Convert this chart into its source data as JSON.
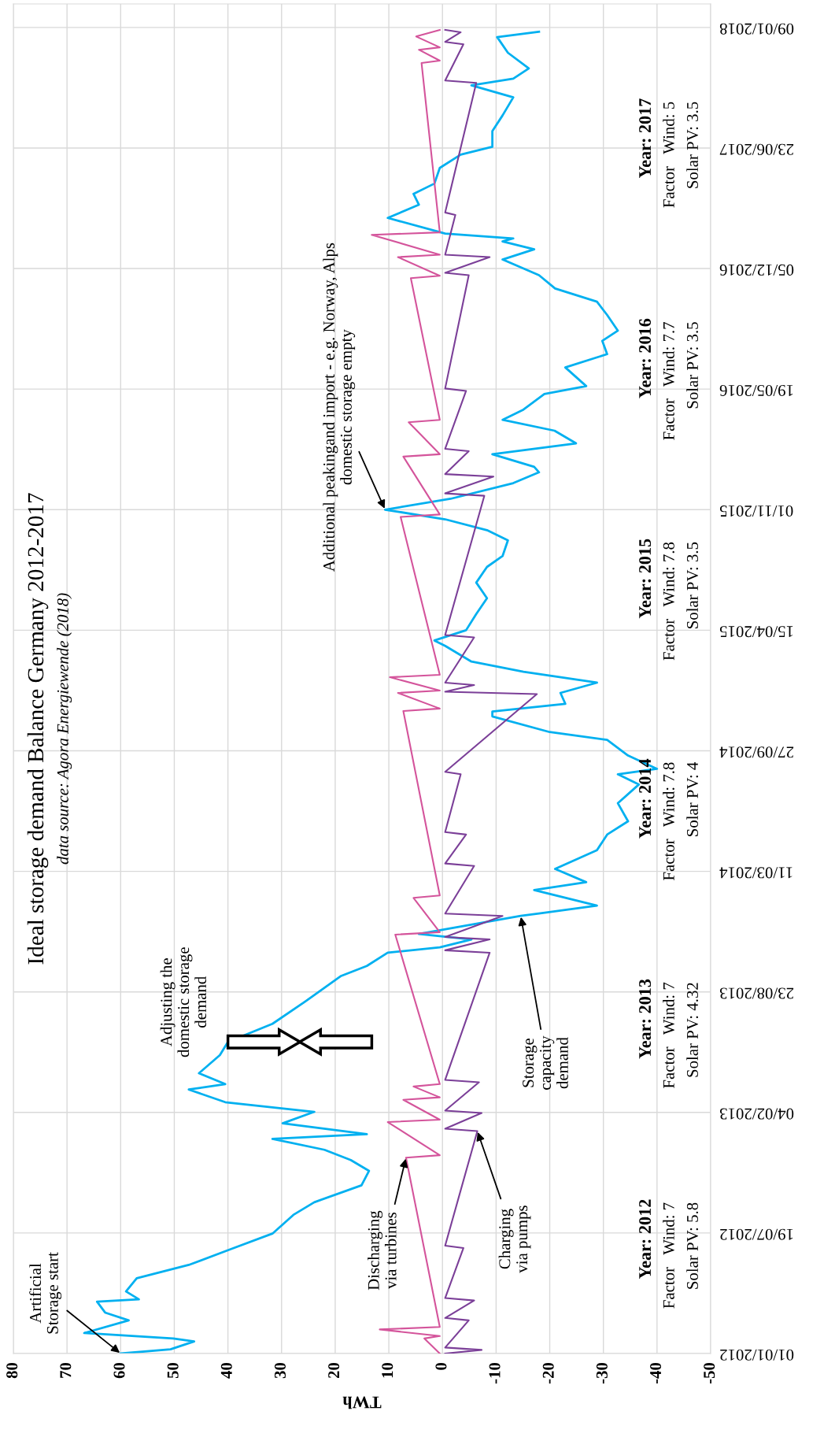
{
  "chart_data": {
    "type": "line",
    "title": "Ideal storage demand Balance Germany 2012-2017",
    "subtitle": "data source: Agora Energiewende (2018)",
    "xlabel": "TWh",
    "orientation": "horizontal",
    "ylim": [
      "2012-01-01",
      "2018-02-17"
    ],
    "yticks": [
      {
        "value": "2012-01-01",
        "label": "01/01/2012"
      },
      {
        "value": "2012-07-19",
        "label": "19/07/2012"
      },
      {
        "value": "2013-02-04",
        "label": "04/02/2013"
      },
      {
        "value": "2013-08-23",
        "label": "23/08/2013"
      },
      {
        "value": "2014-03-11",
        "label": "11/03/2014"
      },
      {
        "value": "2014-09-27",
        "label": "27/09/2014"
      },
      {
        "value": "2015-04-15",
        "label": "15/04/2015"
      },
      {
        "value": "2015-11-01",
        "label": "01/11/2015"
      },
      {
        "value": "2016-05-19",
        "label": "19/05/2016"
      },
      {
        "value": "2016-12-05",
        "label": "05/12/2016"
      },
      {
        "value": "2017-06-23",
        "label": "23/06/2017"
      },
      {
        "value": "2018-01-09",
        "label": "09/01/2018"
      }
    ],
    "xlim": [
      80,
      -50
    ],
    "xticks": [
      80,
      70,
      60,
      50,
      40,
      30,
      20,
      10,
      0,
      -10,
      -20,
      -30,
      -40,
      -50
    ],
    "grid": true,
    "series": [
      {
        "color": "#00b0f0",
        "x": [
          "2012-01-01",
          "2012-01-08",
          "2012-01-21",
          "2012-01-26",
          "2012-02-04",
          "2012-02-25",
          "2012-03-09",
          "2012-03-27",
          "2012-03-31",
          "2012-04-13",
          "2012-05-05",
          "2012-05-27",
          "2012-06-22",
          "2012-07-18",
          "2012-08-18",
          "2012-09-08",
          "2012-10-06",
          "2012-10-30",
          "2012-11-17",
          "2012-12-04",
          "2012-12-22",
          "2012-12-30",
          "2013-01-17",
          "2013-02-05",
          "2013-02-21",
          "2013-03-14",
          "2013-03-23",
          "2013-04-10",
          "2013-05-10",
          "2013-06-01",
          "2013-07-01",
          "2013-08-05",
          "2013-09-18",
          "2013-10-05",
          "2013-10-27",
          "2013-11-05",
          "2013-11-18",
          "2013-11-27",
          "2013-12-27",
          "2013-12-31",
          "2014-01-13",
          "2014-02-08",
          "2014-02-21",
          "2014-03-15",
          "2014-04-15",
          "2014-05-11",
          "2014-06-02",
          "2014-07-02",
          "2014-08-02",
          "2014-08-19",
          "2014-08-28",
          "2014-09-19",
          "2014-10-15",
          "2014-10-28",
          "2014-11-23",
          "2014-12-01",
          "2014-12-14",
          "2015-01-01",
          "2015-01-18",
          "2015-02-05",
          "2015-02-22",
          "2015-03-20",
          "2015-03-29",
          "2015-04-15",
          "2015-05-12",
          "2015-06-07",
          "2015-07-03",
          "2015-07-29",
          "2015-08-16",
          "2015-09-11",
          "2015-09-28",
          "2015-10-16",
          "2015-11-01",
          "2015-11-19",
          "2015-12-15",
          "2016-01-02",
          "2016-01-11",
          "2016-02-01",
          "2016-02-19",
          "2016-03-11",
          "2016-03-29",
          "2016-04-15",
          "2016-05-11",
          "2016-05-24",
          "2016-06-24",
          "2016-07-16",
          "2016-08-07",
          "2016-08-24",
          "2016-09-19",
          "2016-10-11",
          "2016-11-02",
          "2016-11-24",
          "2016-12-20",
          "2017-01-06",
          "2017-01-19",
          "2017-01-24",
          "2017-02-01",
          "2017-02-27",
          "2017-03-21",
          "2017-04-08",
          "2017-04-25",
          "2017-05-21",
          "2017-06-12",
          "2017-06-25",
          "2017-07-21",
          "2017-08-16",
          "2017-09-15",
          "2017-10-05",
          "2017-10-16",
          "2017-11-02",
          "2017-11-28",
          "2017-12-24",
          "2018-01-02"
        ],
        "values": [
          60,
          50.7,
          46.3,
          50.2,
          66.8,
          58.5,
          62.9,
          64.4,
          56.6,
          59,
          57,
          47.3,
          39.5,
          31.7,
          27.8,
          23.9,
          15.1,
          13.7,
          17.1,
          22,
          31.7,
          14.1,
          29.8,
          23.9,
          40.5,
          47.3,
          40.5,
          45.4,
          41.5,
          40,
          31.7,
          25.9,
          19,
          14.1,
          10.2,
          0.5,
          -5.4,
          4.4,
          -14.6,
          -18,
          -28.8,
          -17.1,
          -26.8,
          -21,
          -28.8,
          -30.7,
          -34.6,
          -32.7,
          -36.6,
          -32.7,
          -40,
          -34.6,
          -30.7,
          -20,
          -9.3,
          -9.3,
          -22.9,
          -22,
          -28.8,
          -15.1,
          -5.4,
          -0.5,
          1.5,
          -4.4,
          -6.3,
          -8.3,
          -6.3,
          -8.3,
          -11.2,
          -12.2,
          -8.3,
          -0.5,
          10.7,
          -1.5,
          -13.2,
          -18,
          -17.1,
          -9.3,
          -24.9,
          -20.9,
          -11.2,
          -15.1,
          -19,
          -26.8,
          -22.9,
          -30.7,
          -29.8,
          -32.7,
          -30.7,
          -28.8,
          -21,
          -18,
          -11.2,
          -17.1,
          -11.2,
          -13.2,
          -0.5,
          10.2,
          4.4,
          5.4,
          1.5,
          0.5,
          -3.4,
          -9.3,
          -9.3,
          -11.2,
          -13.2,
          -5.4,
          -13.2,
          -16.1,
          -12.2,
          -10.2,
          -18
        ]
      },
      {
        "color": "#d4549b",
        "x": [
          "2012-01-01",
          "2012-01-26",
          "2012-01-30",
          "2012-02-10",
          "2012-02-14",
          "2012-11-21",
          "2012-11-25",
          "2013-01-19",
          "2013-01-23",
          "2013-02-25",
          "2013-03-01",
          "2013-03-19",
          "2013-03-23",
          "2013-11-26",
          "2013-11-30",
          "2014-01-26",
          "2014-01-30",
          "2014-12-02",
          "2014-12-06",
          "2015-01-01",
          "2015-01-05",
          "2015-01-27",
          "2015-01-31",
          "2015-10-20",
          "2015-10-24",
          "2016-01-28",
          "2016-02-01",
          "2016-03-25",
          "2016-03-29",
          "2016-11-19",
          "2016-11-23",
          "2016-12-24",
          "2016-12-28",
          "2017-01-30",
          "2017-02-03",
          "2017-11-11",
          "2017-11-15",
          "2017-12-03",
          "2017-12-07",
          "2017-12-25",
          "2018-01-05"
        ],
        "values": [
          0.5,
          3.4,
          0.5,
          11.7,
          0.5,
          6.8,
          0.5,
          10.2,
          0.5,
          7.3,
          0.5,
          5.4,
          0.5,
          8.8,
          0.5,
          5.4,
          0.5,
          7.3,
          0.5,
          8.3,
          0.5,
          9.8,
          0.5,
          7.8,
          0.5,
          7.3,
          0.5,
          6.3,
          0.5,
          5.9,
          0.5,
          8.3,
          0.5,
          13.2,
          0.5,
          3.9,
          0.5,
          4.4,
          0.5,
          4.9,
          0.5
        ]
      },
      {
        "color": "#7b3f98",
        "x": [
          "2012-01-01",
          "2012-01-07",
          "2012-01-11",
          "2012-02-25",
          "2012-02-29",
          "2012-03-29",
          "2012-04-02",
          "2012-06-24",
          "2012-06-28",
          "2013-01-04",
          "2013-01-08",
          "2013-02-03",
          "2013-02-07",
          "2013-03-26",
          "2013-03-30",
          "2013-10-27",
          "2013-10-31",
          "2013-11-18",
          "2013-11-22",
          "2013-12-27",
          "2013-12-31",
          "2014-03-20",
          "2014-03-24",
          "2014-05-11",
          "2014-05-15",
          "2014-08-19",
          "2014-08-23",
          "2014-12-30",
          "2015-01-03",
          "2015-01-14",
          "2015-01-18",
          "2015-04-03",
          "2015-04-07",
          "2015-11-24",
          "2015-11-28",
          "2015-12-26",
          "2015-12-30",
          "2016-02-06",
          "2016-02-10",
          "2016-05-16",
          "2016-05-20",
          "2016-11-24",
          "2016-11-28",
          "2016-12-24",
          "2016-12-28",
          "2017-03-04",
          "2017-03-08",
          "2017-10-09",
          "2017-10-13",
          "2017-12-12",
          "2017-12-16",
          "2018-01-01",
          "2018-01-05"
        ],
        "values": [
          -0.5,
          -7.3,
          -0.5,
          -4.9,
          -0.5,
          -5.9,
          -0.5,
          -3.9,
          -0.5,
          -6.5,
          -0.5,
          -7.3,
          -0.5,
          -6.8,
          -0.5,
          -8.8,
          -0.5,
          -8.8,
          -0.5,
          -11.2,
          -0.5,
          -5.9,
          -0.5,
          -4.4,
          -0.5,
          -3.4,
          -0.5,
          -17.6,
          -0.5,
          -5.9,
          -0.5,
          -5.9,
          -0.5,
          -7.8,
          -0.5,
          -9.5,
          -0.5,
          -4.9,
          -0.5,
          -4.4,
          -0.5,
          -4.9,
          -0.5,
          -8.8,
          -0.5,
          -2.4,
          -0.5,
          -6.3,
          -0.5,
          -3.9,
          -0.5,
          -3.4,
          -0.5
        ]
      }
    ],
    "annotations": [
      {
        "text": "Artificial\nStorage start",
        "x": 60,
        "y": "2012-01-01"
      },
      {
        "text": "Discharging\nvia turbines",
        "x": 6.8,
        "y": "2012-11-21"
      },
      {
        "text": "Charging\nvia pumps",
        "x": -6.5,
        "y": "2013-01-04"
      },
      {
        "text": "Storage\ncapacity\ndemand",
        "x": -14.6,
        "y": "2013-12-27"
      },
      "Adjusting the\ndomestic storage\ndemand",
      {
        "text": "Additional peakingand import - e.g. Norway, Alps\ndomestic storage empty",
        "x": 10.7,
        "y": "2015-11-01"
      },
      "Year: 2012",
      "Factor   Wind: 7",
      "Solar PV: 5.8",
      "Year: 2013",
      "Factor   Wind: 7",
      "Solar PV: 4.32",
      "Year: 2014",
      "Factor   Wind: 7.8",
      "Solar PV: 4",
      "Year: 2015",
      "Factor   Wind: 7.8",
      "Solar PV: 3.5",
      "Year: 2016",
      "Factor   Wind: 7.7",
      "Solar PV: 3.5",
      "Year: 2017",
      "Factor   Wind: 5",
      "Solar PV: 3.5"
    ]
  }
}
